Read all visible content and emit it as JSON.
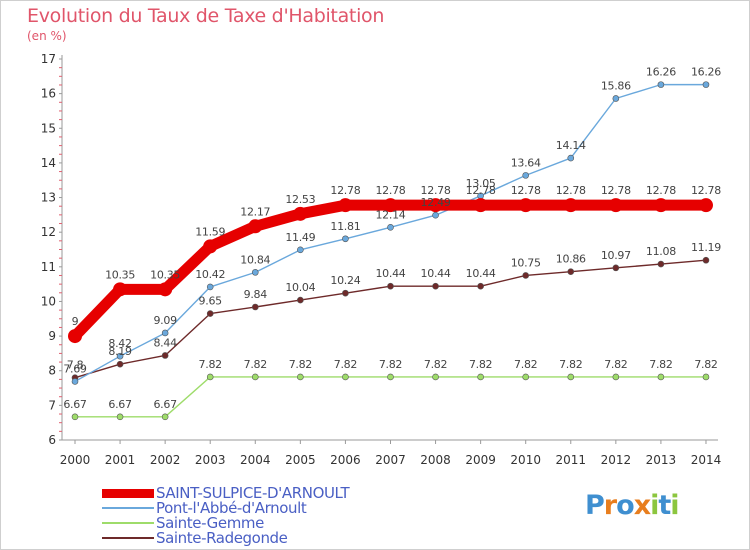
{
  "title": "Evolution du Taux de Taxe d'Habitation",
  "unit": "(en %)",
  "logo": [
    "P",
    "r",
    "o",
    "x",
    "i",
    "t",
    "i"
  ],
  "logo_colors": [
    "#3f8fd0",
    "#e87e1e",
    "#3f8fd0",
    "#e87e1e",
    "#8cc63f",
    "#3f8fd0",
    "#8cc63f"
  ],
  "chart_data": {
    "type": "line",
    "title": "Evolution du Taux de Taxe d'Habitation",
    "ylabel": "(en %)",
    "xlabel": "",
    "x": [
      "2000",
      "2001",
      "2002",
      "2003",
      "2004",
      "2005",
      "2006",
      "2007",
      "2008",
      "2009",
      "2010",
      "2011",
      "2012",
      "2013",
      "2014"
    ],
    "ylim": [
      6,
      17
    ],
    "yticks": [
      "6",
      "7",
      "8",
      "9",
      "10",
      "11",
      "12",
      "13",
      "14",
      "15",
      "16",
      "17"
    ],
    "grid": false,
    "legend_position": "bottom-left",
    "series": [
      {
        "name": "SAINT-SULPICE-D'ARNOULT",
        "color": "#e60000",
        "values": [
          9,
          10.35,
          10.35,
          11.59,
          12.17,
          12.53,
          12.78,
          12.78,
          12.78,
          12.78,
          12.78,
          12.78,
          12.78,
          12.78,
          12.78
        ],
        "labels": [
          "9",
          "10.35",
          "10.35",
          "11.59",
          "12.17",
          "12.53",
          "12.78",
          "12.78",
          "12.78",
          "12.78",
          "12.78",
          "12.78",
          "12.78",
          "12.78",
          "12.78"
        ]
      },
      {
        "name": "Pont-l'Abbé-d'Arnoult",
        "color": "#6aa8dc",
        "values": [
          7.69,
          8.42,
          9.09,
          10.42,
          10.84,
          11.49,
          11.81,
          12.14,
          12.49,
          13.05,
          13.64,
          14.14,
          15.86,
          16.26,
          16.26
        ],
        "labels": [
          "7.69",
          "8.42",
          "9.09",
          "10.42",
          "10.84",
          "11.49",
          "11.81",
          "12.14",
          "12.49",
          "13.05",
          "13.64",
          "14.14",
          "15.86",
          "16.26",
          "16.26"
        ]
      },
      {
        "name": "Sainte-Gemme",
        "color": "#9edc6a",
        "values": [
          6.67,
          6.67,
          6.67,
          7.82,
          7.82,
          7.82,
          7.82,
          7.82,
          7.82,
          7.82,
          7.82,
          7.82,
          7.82,
          7.82,
          7.82
        ],
        "labels": [
          "6.67",
          "6.67",
          "6.67",
          "7.82",
          "7.82",
          "7.82",
          "7.82",
          "7.82",
          "7.82",
          "7.82",
          "7.82",
          "7.82",
          "7.82",
          "7.82",
          "7.82"
        ]
      },
      {
        "name": "Sainte-Radegonde",
        "color": "#6e2a2a",
        "values": [
          7.8,
          8.19,
          8.44,
          9.65,
          9.84,
          10.04,
          10.24,
          10.44,
          10.44,
          10.44,
          10.75,
          10.86,
          10.97,
          11.08,
          11.19
        ],
        "labels": [
          "7.8",
          "8.19",
          "8.44",
          "9.65",
          "9.84",
          "10.04",
          "10.24",
          "10.44",
          "10.44",
          "10.44",
          "10.75",
          "10.86",
          "10.97",
          "11.08",
          "11.19"
        ]
      }
    ]
  }
}
